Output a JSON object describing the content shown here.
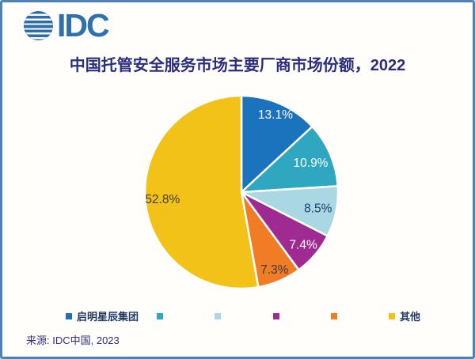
{
  "logo": {
    "text": "IDC"
  },
  "title": "中国托管安全服务市场主要厂商市场份额，2022",
  "source": "来源: IDC中国, 2023",
  "colors": {
    "frame_border": "#4e82b2",
    "title_text": "#2b2e80",
    "legend_text": "#203864",
    "logo_blue": "#2e71ad",
    "slice_separator": "#ffffff"
  },
  "chart_data": {
    "type": "pie",
    "title": "中国托管安全服务市场主要厂商市场份额，2022",
    "unit": "percent market share",
    "start_angle_deg": 0,
    "direction": "clockwise",
    "legend_position": "bottom",
    "slices": [
      {
        "legend_label": "启明星辰集团",
        "value": 13.1,
        "data_label": "13.1%",
        "color": "#1c73bd",
        "data_label_color": "#ffffff"
      },
      {
        "legend_label": "",
        "value": 10.9,
        "data_label": "10.9%",
        "color": "#30a7c1",
        "data_label_color": "#ffffff"
      },
      {
        "legend_label": "",
        "value": 8.5,
        "data_label": "8.5%",
        "color": "#a9d8e4",
        "data_label_color": "#1f3a68"
      },
      {
        "legend_label": "",
        "value": 7.4,
        "data_label": "7.4%",
        "color": "#9f2b92",
        "data_label_color": "#ffffff"
      },
      {
        "legend_label": "",
        "value": 7.3,
        "data_label": "7.3%",
        "color": "#f07c25",
        "data_label_color": "#3a3a42"
      },
      {
        "legend_label": "其他",
        "value": 52.8,
        "data_label": "52.8%",
        "color": "#f3c218",
        "data_label_color": "#403d35"
      }
    ]
  }
}
